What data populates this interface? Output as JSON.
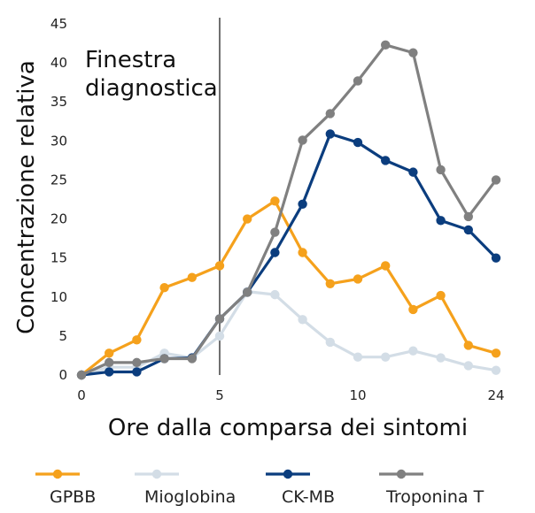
{
  "chart_data": {
    "type": "line",
    "xlabel": "Ore dalla comparsa dei sintomi",
    "ylabel": "Concentrazione relativa",
    "annotation": "Finestra diagnostica",
    "annotation_lines": [
      "Finestra",
      "diagnostica"
    ],
    "marker_line_x": 5,
    "ylim": [
      0,
      45
    ],
    "yticks": [
      0,
      5,
      10,
      15,
      20,
      25,
      30,
      35,
      40,
      45
    ],
    "x": [
      0,
      1,
      2,
      3,
      4,
      5,
      6,
      7,
      8,
      9,
      10,
      11,
      12,
      13,
      14,
      15
    ],
    "xtick_labels": [
      {
        "index": 0,
        "label": "0"
      },
      {
        "index": 5,
        "label": "5"
      },
      {
        "index": 10,
        "label": "10"
      },
      {
        "index": 15,
        "label": "24"
      }
    ],
    "grid": false,
    "legend_position": "bottom",
    "series": [
      {
        "name": "GPBB",
        "color": "#f5a11c",
        "values": [
          0,
          2.8,
          4.5,
          11.2,
          12.5,
          14,
          20,
          22.3,
          15.7,
          11.7,
          12.3,
          14,
          8.4,
          10.2,
          3.8,
          2.8
        ]
      },
      {
        "name": "Mioglobina",
        "color": "#d3dde6",
        "values": [
          0,
          1,
          1,
          2.8,
          2.2,
          5,
          10.7,
          10.3,
          7.1,
          4.2,
          2.3,
          2.3,
          3.1,
          2.2,
          1.2,
          0.6
        ]
      },
      {
        "name": "CK-MB",
        "color": "#0b3d7e",
        "values": [
          0,
          0.4,
          0.4,
          2.1,
          2.2,
          7.2,
          10.6,
          15.7,
          21.9,
          30.9,
          29.8,
          27.5,
          26,
          19.8,
          18.6,
          15
        ]
      },
      {
        "name": "Troponina T",
        "color": "#808080",
        "values": [
          0,
          1.6,
          1.6,
          2.1,
          2.1,
          7.2,
          10.6,
          18.3,
          30.1,
          33.5,
          37.7,
          42.3,
          41.3,
          26.3,
          20.3,
          25
        ]
      }
    ]
  }
}
